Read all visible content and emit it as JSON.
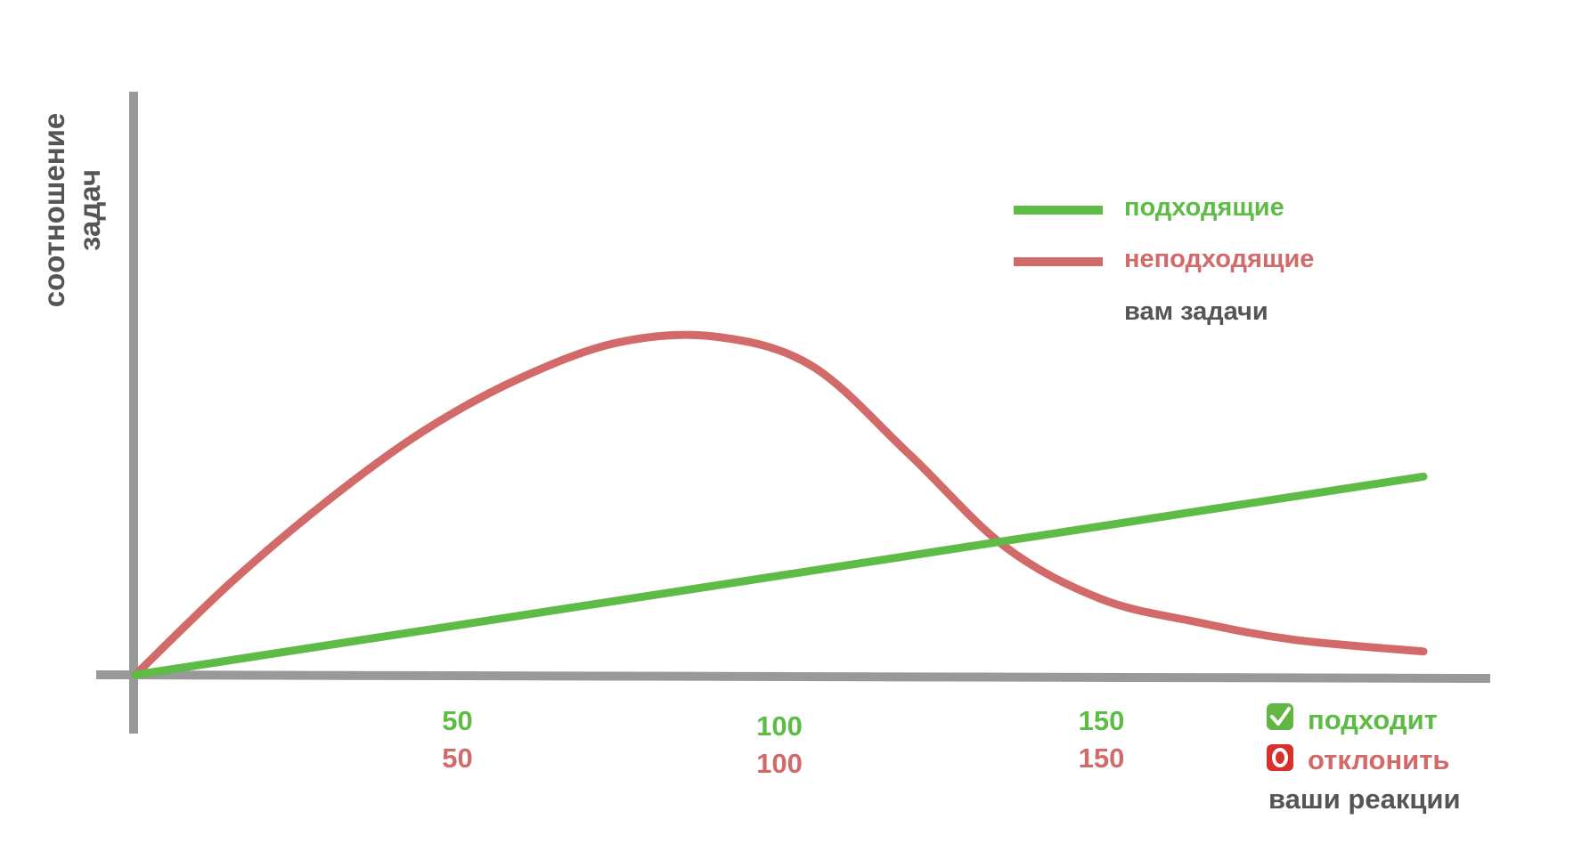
{
  "chart_data": {
    "type": "line",
    "title": "",
    "ylabel_lines": [
      "соотношение",
      "задач"
    ],
    "legend": {
      "entries": [
        {
          "name": "подходящие",
          "color": "#5dbb46"
        },
        {
          "name": "неподходящие",
          "color": "#d36a6a"
        }
      ],
      "caption": "вам задачи",
      "placement": "top-right"
    },
    "x_ticks": [
      {
        "x": 50,
        "green": "50",
        "red": "50"
      },
      {
        "x": 100,
        "green": "100",
        "red": "100"
      },
      {
        "x": 150,
        "green": "150",
        "red": "150"
      }
    ],
    "x_legend": {
      "accept_icon": "check-mark-button-icon",
      "accept_label": "подходит",
      "reject_icon": "red-o-button-icon",
      "reject_label": "отклонить",
      "caption": "ваши реакции"
    },
    "xlim": [
      0,
      200
    ],
    "ylim": [
      0,
      10
    ],
    "grid": false,
    "series": [
      {
        "name": "подходящие",
        "color": "#5dbb46",
        "x": [
          0,
          200
        ],
        "y": [
          0,
          3.4
        ]
      },
      {
        "name": "неподходящие",
        "color": "#d36a6a",
        "x": [
          0,
          15,
          30,
          45,
          60,
          75,
          90,
          105,
          120,
          135,
          150,
          165,
          180,
          200
        ],
        "y": [
          0,
          1.6,
          3.0,
          4.2,
          5.1,
          5.7,
          5.8,
          5.3,
          3.8,
          2.2,
          1.3,
          0.9,
          0.6,
          0.4
        ]
      }
    ]
  }
}
